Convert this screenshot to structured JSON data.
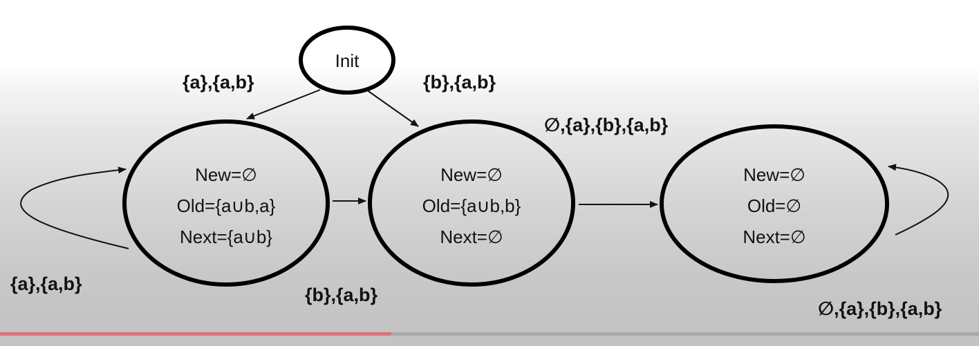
{
  "nodes": {
    "init": {
      "label": "Init"
    },
    "state1": {
      "new": "New=∅",
      "old": "Old={a∪b,a}",
      "next": "Next={a∪b}"
    },
    "state2": {
      "new": "New=∅",
      "old": "Old={a∪b,b}",
      "next": "Next=∅"
    },
    "state3": {
      "new": "New=∅",
      "old": "Old=∅",
      "next": "Next=∅"
    }
  },
  "edges": {
    "init_to_state1": "{a},{a,b}",
    "init_to_state2": "{b},{a,b}",
    "state1_self_loop": "{a},{a,b}",
    "state1_to_state2": "{b},{a,b}",
    "state2_to_state3": "∅,{a},{b},{a,b}",
    "state3_self_loop": "∅,{a},{b},{a,b}"
  },
  "video_progress": 0.4
}
